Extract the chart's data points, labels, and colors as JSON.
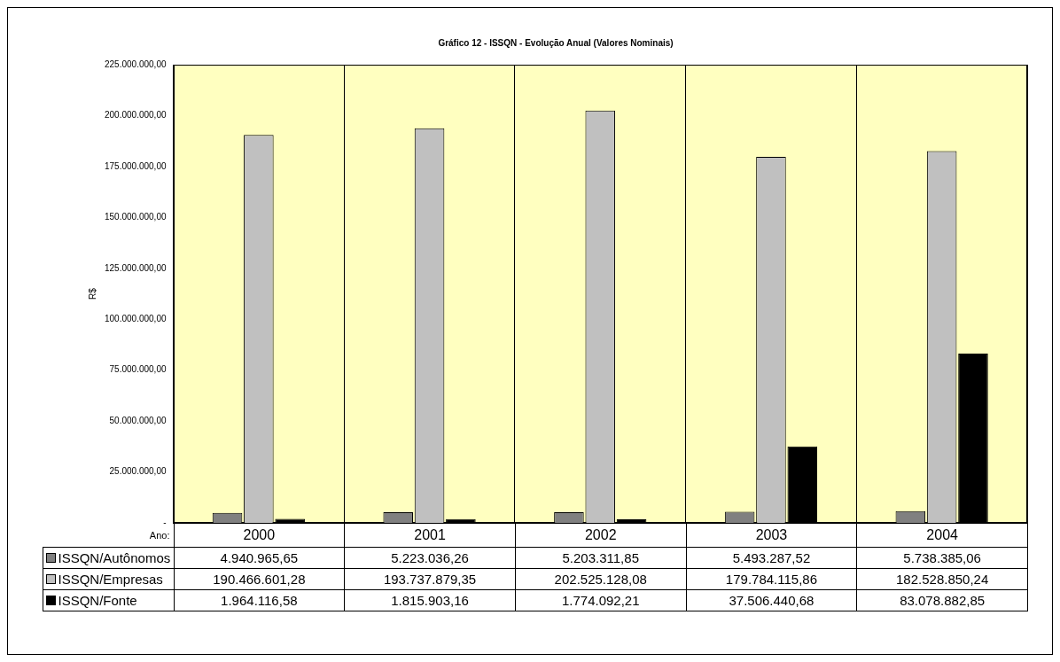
{
  "chart_data": {
    "type": "bar",
    "title": "Gráfico 12 - ISSQN - Evolução Anual (Valores Nominais)",
    "xlabel": "Ano:",
    "ylabel": "R$",
    "categories": [
      "2000",
      "2001",
      "2002",
      "2003",
      "2004"
    ],
    "series": [
      {
        "name": "ISSQN/Autônomos",
        "color": "#808080",
        "values": [
          4940965.65,
          5223036.26,
          5203311.85,
          5493287.52,
          5738385.06
        ],
        "value_labels": [
          "4.940.965,65",
          "5.223.036,26",
          "5.203.311,85",
          "5.493.287,52",
          "5.738.385,06"
        ]
      },
      {
        "name": "ISSQN/Empresas",
        "color": "#c0c0c0",
        "values": [
          190466601.28,
          193737879.35,
          202525128.08,
          179784115.86,
          182528850.24
        ],
        "value_labels": [
          "190.466.601,28",
          "193.737.879,35",
          "202.525.128,08",
          "179.784.115,86",
          "182.528.850,24"
        ]
      },
      {
        "name": "ISSQN/Fonte",
        "color": "#000000",
        "values": [
          1964116.58,
          1815903.16,
          1774092.21,
          37506440.68,
          83078882.85
        ],
        "value_labels": [
          "1.964.116,58",
          "1.815.903,16",
          "1.774.092,21",
          "37.506.440,68",
          "83.078.882,85"
        ]
      }
    ],
    "ylim": [
      0,
      225000000
    ],
    "yticks": [
      {
        "value": 0,
        "label": "-"
      },
      {
        "value": 25000000,
        "label": "25.000.000,00"
      },
      {
        "value": 50000000,
        "label": "50.000.000,00"
      },
      {
        "value": 75000000,
        "label": "75.000.000,00"
      },
      {
        "value": 100000000,
        "label": "100.000.000,00"
      },
      {
        "value": 125000000,
        "label": "125.000.000,00"
      },
      {
        "value": 150000000,
        "label": "150.000.000,00"
      },
      {
        "value": 175000000,
        "label": "175.000.000,00"
      },
      {
        "value": 200000000,
        "label": "200.000.000,00"
      },
      {
        "value": 225000000,
        "label": "225.000.000,00"
      }
    ],
    "grid": "x",
    "legend": "bottom"
  }
}
